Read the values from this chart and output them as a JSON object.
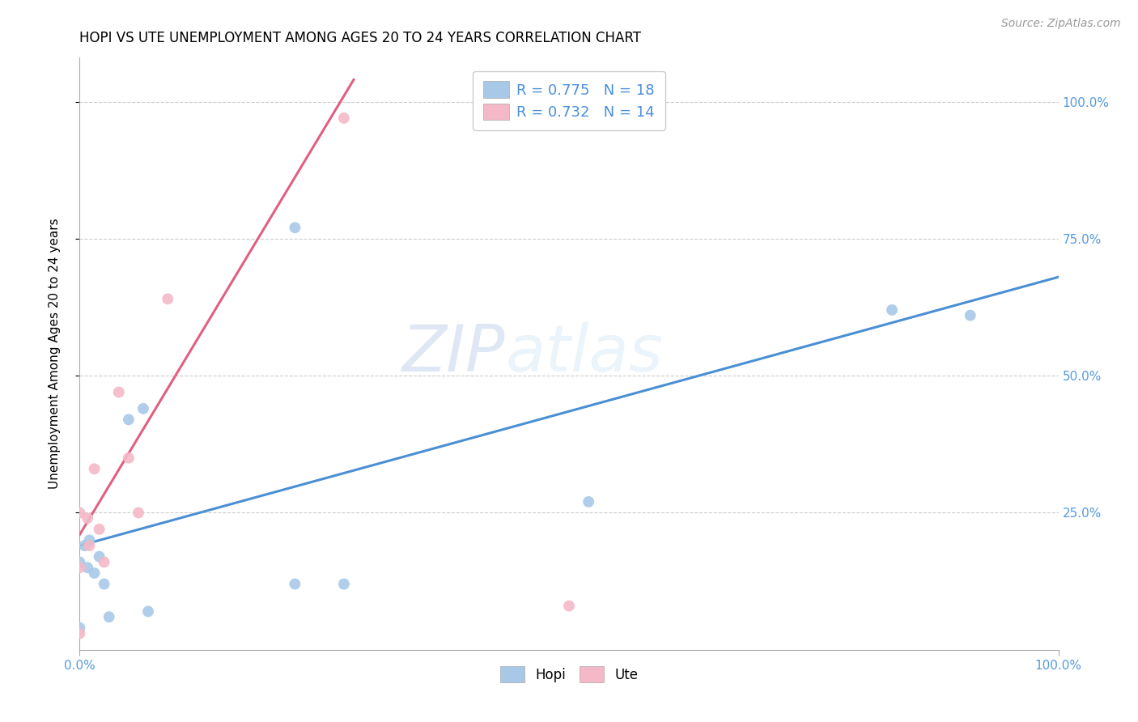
{
  "title": "HOPI VS UTE UNEMPLOYMENT AMONG AGES 20 TO 24 YEARS CORRELATION CHART",
  "source": "Source: ZipAtlas.com",
  "ylabel": "Unemployment Among Ages 20 to 24 years",
  "xlim": [
    0.0,
    1.0
  ],
  "ylim": [
    0.0,
    1.08
  ],
  "xtick_positions": [
    0.0,
    1.0
  ],
  "xtick_labels": [
    "0.0%",
    "100.0%"
  ],
  "ytick_positions": [
    0.25,
    0.5,
    0.75,
    1.0
  ],
  "ytick_labels": [
    "25.0%",
    "50.0%",
    "75.0%",
    "100.0%"
  ],
  "background_color": "#ffffff",
  "grid_color": "#cccccc",
  "watermark_zip": "ZIP",
  "watermark_atlas": "atlas",
  "hopi": {
    "color": "#a8c8e8",
    "edge_color": "#6aaad4",
    "line_color": "#4a8fd4",
    "R": "0.775",
    "N": "18",
    "points_x": [
      0.0,
      0.0,
      0.005,
      0.008,
      0.01,
      0.015,
      0.02,
      0.025,
      0.03,
      0.05,
      0.065,
      0.07,
      0.22,
      0.22,
      0.27,
      0.52,
      0.83,
      0.91
    ],
    "points_y": [
      0.04,
      0.16,
      0.19,
      0.15,
      0.2,
      0.14,
      0.17,
      0.12,
      0.06,
      0.42,
      0.44,
      0.07,
      0.12,
      0.77,
      0.12,
      0.27,
      0.62,
      0.61
    ],
    "trendline_x": [
      0.0,
      1.0
    ],
    "trendline_y": [
      0.19,
      0.68
    ]
  },
  "ute": {
    "color": "#f4b8c8",
    "edge_color": "#e87898",
    "line_color": "#e06080",
    "R": "0.732",
    "N": "14",
    "points_x": [
      0.0,
      0.0,
      0.0,
      0.008,
      0.01,
      0.015,
      0.02,
      0.025,
      0.04,
      0.05,
      0.06,
      0.09,
      0.27,
      0.5
    ],
    "points_y": [
      0.25,
      0.15,
      0.03,
      0.24,
      0.19,
      0.33,
      0.22,
      0.16,
      0.47,
      0.35,
      0.25,
      0.64,
      0.97,
      0.08
    ],
    "trendline_x": [
      0.0,
      0.28
    ],
    "trendline_y": [
      0.21,
      1.04
    ]
  },
  "title_fontsize": 12,
  "axis_label_fontsize": 11,
  "tick_fontsize": 11,
  "source_fontsize": 10,
  "dot_size": 100,
  "legend_hopi_label": "R = 0.775   N = 18",
  "legend_ute_label": "R = 0.732   N = 14",
  "bottom_legend_hopi": "Hopi",
  "bottom_legend_ute": "Ute"
}
